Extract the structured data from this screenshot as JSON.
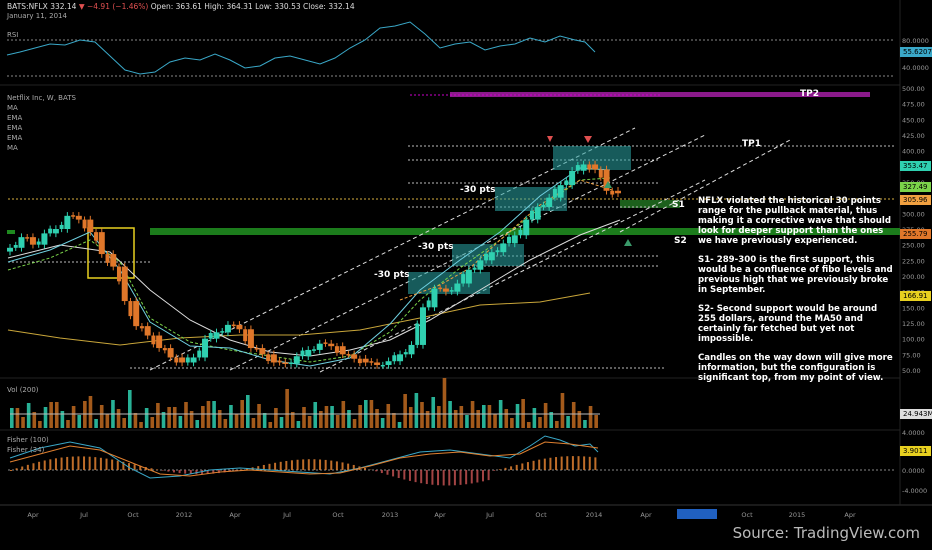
{
  "header": {
    "symbol": "BATS:NFLX",
    "last": "332.14",
    "change": "▼ −4.91 (−1.46%)",
    "open": "Open: 363.61",
    "high": "High: 364.31",
    "low": "Low: 330.53",
    "close": "Close: 332.14",
    "date": "January 11, 2014"
  },
  "panes": {
    "rsi": "RSI",
    "price": "Netflix Inc, W, BATS",
    "ma_list": [
      "MA",
      "EMA",
      "EMA",
      "EMA",
      "MA"
    ],
    "vol": "Vol (200)",
    "fisher": "Fisher (100)",
    "fisher2": "Fisher (34)"
  },
  "annotations": {
    "tp1": "TP1",
    "tp2": "TP2",
    "s1": "S1",
    "s2": "S2",
    "pts1": "-30 pts",
    "pts2": "-30 pts",
    "pts3": "-30 pts"
  },
  "note": [
    "NFLX violated the historical 30 points range for the pullback material, thus making it a corrective wave that should look for deeper support than the ones we have previously experienced.",
    "S1- 289-300 is the first support, this would be a confluence of fibo levels and previous high that we previously broke in September.",
    "S2- Second support would be around 255 dollars, around the MA50 and certainly far fetched but yet not impossible.",
    "Candles on the way down will give more information, but the configuration is significant top, from my point of view."
  ],
  "tags": {
    "rsi": "55.6207",
    "price_a": "353.47",
    "price_b": "327.49",
    "price_c": "305.96",
    "price_d": "255.79",
    "price_e": "166.91",
    "vol": "24.943M",
    "fisher": "3.9011"
  },
  "source": "Source: TradingView.com",
  "colors": {
    "bull": "#2fd0b0",
    "bear": "#e0772a",
    "green_band": "#1f8a1f",
    "purple": "#8b1a8b",
    "zone": "#2aa6a6"
  },
  "chart_data": {
    "type": "line",
    "title": "Netflix Inc, W, BATS",
    "x_ticks": [
      "Apr",
      "Jul",
      "Oct",
      "2012",
      "Apr",
      "Jul",
      "Oct",
      "2013",
      "Apr",
      "Jul",
      "Oct",
      "2014",
      "Apr",
      "2014-07-07",
      "Oct",
      "2015",
      "Apr"
    ],
    "rsi_ticks": [
      "80.0000",
      "40.0000"
    ],
    "price_ticks": [
      "500.00",
      "475.00",
      "450.00",
      "425.00",
      "400.00",
      "375.00",
      "350.00",
      "325.00",
      "300.00",
      "275.00",
      "250.00",
      "225.00",
      "200.00",
      "175.00",
      "150.00",
      "125.00",
      "100.00",
      "75.00",
      "50.00"
    ],
    "fisher_ticks": [
      "4.0000",
      "0.0000",
      "-4.0000"
    ],
    "price_series": [
      245,
      262,
      250,
      268,
      275,
      296,
      290,
      270,
      235,
      215,
      160,
      120,
      105,
      85,
      70,
      62,
      70,
      100,
      110,
      122,
      115,
      85,
      75,
      62,
      60,
      72,
      82,
      92,
      88,
      75,
      68,
      62,
      58,
      64,
      75,
      90,
      150,
      180,
      175,
      188,
      210,
      225,
      238,
      252,
      265,
      290,
      310,
      325,
      345,
      368,
      378,
      370,
      336,
      332
    ],
    "ylim": [
      40,
      510
    ]
  }
}
